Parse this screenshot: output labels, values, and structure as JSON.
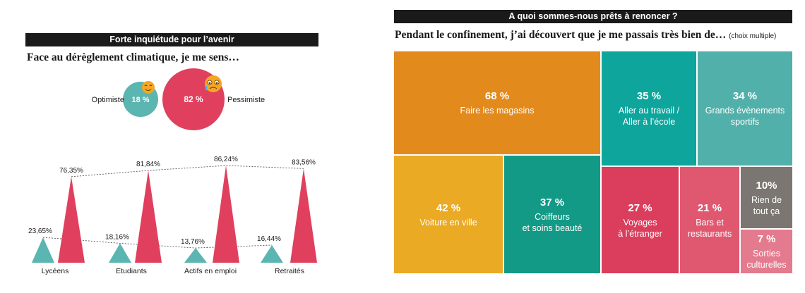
{
  "left": {
    "header": "Forte inquiétude pour l’avenir",
    "subtitle": "Face au dérèglement climatique, je me sens…",
    "bubbles": [
      {
        "label": "Optimiste",
        "value_label": "18 %",
        "value": 18,
        "color": "#5bb5b0"
      },
      {
        "label": "Pessimiste",
        "value_label": "82 %",
        "value": 82,
        "color": "#e0405e"
      }
    ]
  },
  "right": {
    "header": "A quoi sommes-nous prêts à renoncer ?",
    "subtitle": "Pendant le confinement, j’ai découvert que je me passais très bien de…",
    "note": "(choix multiple)"
  },
  "chart_data": [
    {
      "type": "bar",
      "title": "Face au dérèglement climatique, je me sens…",
      "categories": [
        "Lycéens",
        "Etudiants",
        "Actifs en emploi",
        "Retraités"
      ],
      "series": [
        {
          "name": "Optimiste",
          "values": [
            23.65,
            18.16,
            13.76,
            16.44
          ],
          "labels": [
            "23,65%",
            "18,16%",
            "13,76%",
            "16,44%"
          ],
          "color": "#5bb5b0"
        },
        {
          "name": "Pessimiste",
          "values": [
            76.35,
            81.84,
            86.24,
            83.56
          ],
          "labels": [
            "76,35%",
            "81,84%",
            "86,24%",
            "83,56%"
          ],
          "color": "#e0405e"
        }
      ],
      "ylim": [
        0,
        100
      ]
    },
    {
      "type": "treemap",
      "title": "Pendant le confinement, j’ai découvert que je me passais très bien de…",
      "items": [
        {
          "label": "Faire les magasins",
          "value": 68,
          "value_label": "68 %",
          "color": "#e38a1c"
        },
        {
          "label": "Aller au travail /\nAller à l’école",
          "value": 35,
          "value_label": "35 %",
          "color": "#0ea59c"
        },
        {
          "label": "Grands évènements\nsportifs",
          "value": 34,
          "value_label": "34 %",
          "color": "#52b0aa"
        },
        {
          "label": "Voiture en ville",
          "value": 42,
          "value_label": "42 %",
          "color": "#eaaa24"
        },
        {
          "label": "Coiffeurs\net soins beauté",
          "value": 37,
          "value_label": "37 %",
          "color": "#139a86"
        },
        {
          "label": "Voyages\nà l’étranger",
          "value": 27,
          "value_label": "27 %",
          "color": "#db3d5c"
        },
        {
          "label": "Bars et\nrestaurants",
          "value": 21,
          "value_label": "21 %",
          "color": "#e05870"
        },
        {
          "label": "Rien de\ntout ça",
          "value": 10,
          "value_label": "10%",
          "color": "#7b7671"
        },
        {
          "label": "Sorties\nculturelles",
          "value": 7,
          "value_label": "7 %",
          "color": "#e47a8d"
        }
      ]
    }
  ]
}
